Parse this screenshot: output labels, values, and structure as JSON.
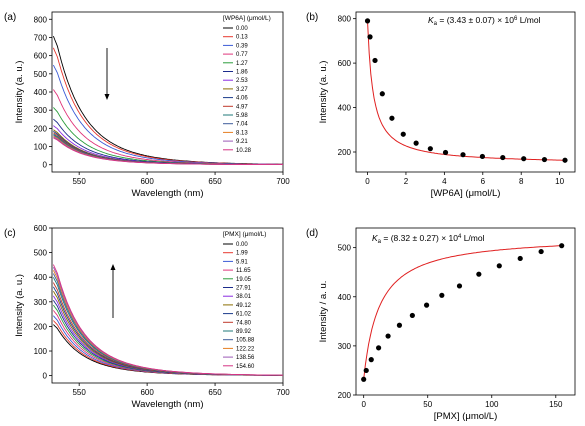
{
  "chart_data": [
    {
      "panel": "(a)",
      "type": "line",
      "xlabel": "Wavelength (nm)",
      "ylabel": "Intensity (a. u.)",
      "xlim": [
        530,
        700
      ],
      "ylim": [
        -40,
        840
      ],
      "xticks": [
        550,
        600,
        650,
        700
      ],
      "yticks": [
        0,
        100,
        200,
        300,
        400,
        500,
        600,
        700,
        800
      ],
      "legend_title": "[WP6A] (μmol/L)",
      "legend_position": "top-right",
      "arrow": "down",
      "series": [
        {
          "name": "0.00",
          "color": "#000000",
          "peak": 790
        },
        {
          "name": "0.13",
          "color": "#e8382e",
          "peak": 718
        },
        {
          "name": "0.39",
          "color": "#3b5bd6",
          "peak": 612
        },
        {
          "name": "0.77",
          "color": "#e0347a",
          "peak": 462
        },
        {
          "name": "1.27",
          "color": "#2a9d3c",
          "peak": 352
        },
        {
          "name": "1.86",
          "color": "#1c2c8c",
          "peak": 280
        },
        {
          "name": "2.53",
          "color": "#8a2be2",
          "peak": 240
        },
        {
          "name": "3.27",
          "color": "#8a6d00",
          "peak": 215
        },
        {
          "name": "4.06",
          "color": "#1a3a8a",
          "peak": 205
        },
        {
          "name": "4.97",
          "color": "#c0392b",
          "peak": 196
        },
        {
          "name": "5.98",
          "color": "#1f7a7a",
          "peak": 188
        },
        {
          "name": "7.04",
          "color": "#3d5c9a",
          "peak": 182
        },
        {
          "name": "8.13",
          "color": "#e67e22",
          "peak": 176
        },
        {
          "name": "9.21",
          "color": "#9b59b6",
          "peak": 170
        },
        {
          "name": "10.28",
          "color": "#d63384",
          "peak": 165
        }
      ]
    },
    {
      "panel": "(b)",
      "type": "scatter",
      "annotation": "K_a = (3.43 ± 0.07) × 10^6 L/mol",
      "xlabel": "[WP6A] (μmol/L)",
      "ylabel": "Intensity (a. u.)",
      "xlim": [
        -0.6,
        10.8
      ],
      "ylim": [
        110,
        830
      ],
      "xticks": [
        0,
        2,
        4,
        6,
        8,
        10
      ],
      "yticks": [
        200,
        400,
        600,
        800
      ],
      "fit": {
        "model": "1:1 binding",
        "Ka": 3.43,
        "color": "#e02020"
      },
      "x": [
        0.0,
        0.13,
        0.39,
        0.77,
        1.27,
        1.86,
        2.53,
        3.27,
        4.06,
        4.97,
        5.98,
        7.04,
        8.13,
        9.21,
        10.28
      ],
      "y": [
        790,
        718,
        612,
        462,
        352,
        280,
        240,
        215,
        198,
        188,
        180,
        175,
        170,
        166,
        163
      ]
    },
    {
      "panel": "(c)",
      "type": "line",
      "xlabel": "Wavelength (nm)",
      "ylabel": "Intensity (a. u.)",
      "xlim": [
        530,
        700
      ],
      "ylim": [
        -30,
        600
      ],
      "xticks": [
        550,
        600,
        650,
        700
      ],
      "yticks": [
        0,
        100,
        200,
        300,
        400,
        500,
        600
      ],
      "legend_title": "[PMX] (μmol/L)",
      "legend_position": "top-right",
      "arrow": "up",
      "series": [
        {
          "name": "0.00",
          "color": "#000000",
          "peak": 232
        },
        {
          "name": "1.99",
          "color": "#e8382e",
          "peak": 250
        },
        {
          "name": "5.91",
          "color": "#3b5bd6",
          "peak": 272
        },
        {
          "name": "11.65",
          "color": "#e0347a",
          "peak": 296
        },
        {
          "name": "19.05",
          "color": "#2a9d3c",
          "peak": 320
        },
        {
          "name": "27.91",
          "color": "#1c2c8c",
          "peak": 342
        },
        {
          "name": "38.01",
          "color": "#8a2be2",
          "peak": 362
        },
        {
          "name": "49.12",
          "color": "#8a6d00",
          "peak": 383
        },
        {
          "name": "61.02",
          "color": "#1a3a8a",
          "peak": 403
        },
        {
          "name": "74.80",
          "color": "#c0392b",
          "peak": 422
        },
        {
          "name": "89.92",
          "color": "#1f7a7a",
          "peak": 446
        },
        {
          "name": "105.88",
          "color": "#3d5c9a",
          "peak": 463
        },
        {
          "name": "122.22",
          "color": "#e67e22",
          "peak": 478
        },
        {
          "name": "138.56",
          "color": "#9b59b6",
          "peak": 492
        },
        {
          "name": "154.60",
          "color": "#d63384",
          "peak": 504
        }
      ]
    },
    {
      "panel": "(d)",
      "type": "scatter",
      "annotation": "K_a = (8.32 ± 0.27) × 10^4 L/mol",
      "xlabel": "[PMX] (μmol/L)",
      "ylabel": "Intensity / a. u.",
      "xlim": [
        -6,
        165
      ],
      "ylim": [
        200,
        540
      ],
      "xticks": [
        0,
        50,
        100,
        150
      ],
      "yticks": [
        200,
        300,
        400,
        500
      ],
      "fit": {
        "model": "1:1 binding",
        "Ka": 0.0832,
        "color": "#e02020"
      },
      "x": [
        0.0,
        1.99,
        5.91,
        11.65,
        19.05,
        27.91,
        38.01,
        49.12,
        61.02,
        74.8,
        89.92,
        105.88,
        122.22,
        138.56,
        154.6
      ],
      "y": [
        232,
        250,
        272,
        296,
        320,
        342,
        362,
        383,
        403,
        422,
        446,
        463,
        478,
        492,
        504
      ]
    }
  ]
}
